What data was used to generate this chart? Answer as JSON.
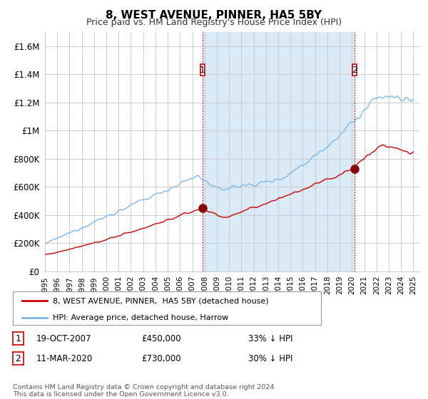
{
  "title": "8, WEST AVENUE, PINNER, HA5 5BY",
  "subtitle": "Price paid vs. HM Land Registry's House Price Index (HPI)",
  "title_fontsize": 11,
  "subtitle_fontsize": 9,
  "ylabel_ticks": [
    "£0",
    "£200K",
    "£400K",
    "£600K",
    "£800K",
    "£1M",
    "£1.2M",
    "£1.4M",
    "£1.6M"
  ],
  "ytick_vals": [
    0,
    200000,
    400000,
    600000,
    800000,
    1000000,
    1200000,
    1400000,
    1600000
  ],
  "ylim": [
    0,
    1700000
  ],
  "xlim_start": 1995.0,
  "xlim_end": 2025.5,
  "hpi_color": "#7ab8e8",
  "hpi_fill_color": "#daeaf7",
  "price_color": "#cc0000",
  "vline_color": "#cc0000",
  "transaction1_x": 2007.83,
  "transaction1_y": 450000,
  "transaction2_x": 2020.2,
  "transaction2_y": 730000,
  "legend_label1": "8, WEST AVENUE, PINNER,  HA5 5BY (detached house)",
  "legend_label2": "HPI: Average price, detached house, Harrow",
  "footer": "Contains HM Land Registry data © Crown copyright and database right 2024.\nThis data is licensed under the Open Government Licence v3.0.",
  "background_color": "#ffffff",
  "grid_color": "#cccccc"
}
